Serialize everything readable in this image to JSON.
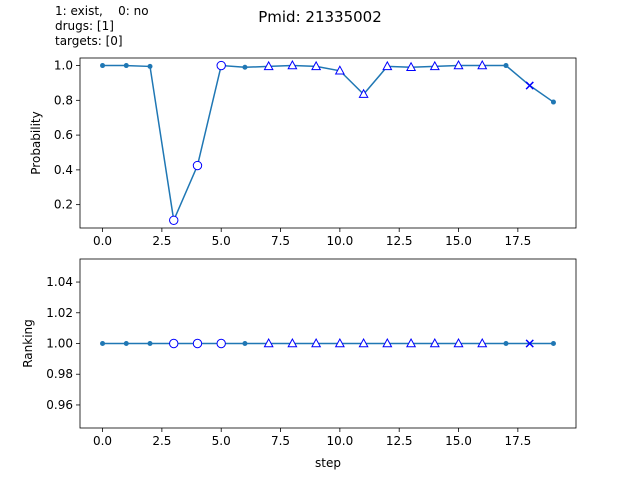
{
  "figure": {
    "suptitle": "Pmid: 21335002",
    "notes": [
      "1: exist,    0: no",
      "drugs: [1]",
      "targets: [0]"
    ]
  },
  "colors": {
    "line": "#1f77b4",
    "marker": "#0000ff"
  },
  "chart_data": [
    {
      "type": "line",
      "ylabel": "Probability",
      "xlabel": "",
      "xlim": [
        -0.95,
        19.95
      ],
      "ylim": [
        0.0657,
        1.0434
      ],
      "xticks": [
        0.0,
        2.5,
        5.0,
        7.5,
        10.0,
        12.5,
        15.0,
        17.5
      ],
      "xtick_labels": [
        "0.0",
        "2.5",
        "5.0",
        "7.5",
        "10.0",
        "12.5",
        "15.0",
        "17.5"
      ],
      "yticks": [
        0.2,
        0.4,
        0.6,
        0.8,
        1.0
      ],
      "ytick_labels": [
        "0.2",
        "0.4",
        "0.6",
        "0.8",
        "1.0"
      ],
      "x": [
        0,
        1,
        2,
        3,
        4,
        5,
        6,
        7,
        8,
        9,
        10,
        11,
        12,
        13,
        14,
        15,
        16,
        17,
        18,
        19
      ],
      "y": [
        1.0,
        1.0,
        0.995,
        0.11,
        0.425,
        1.0,
        0.99,
        0.995,
        1.0,
        0.995,
        0.97,
        0.835,
        0.995,
        0.99,
        0.995,
        1.0,
        1.0,
        1.0,
        0.885,
        0.79
      ],
      "markers": [
        "dot",
        "dot",
        "dot",
        "circle",
        "circle",
        "circle",
        "dot",
        "triangle",
        "triangle",
        "triangle",
        "triangle",
        "triangle",
        "triangle",
        "triangle",
        "triangle",
        "triangle",
        "triangle",
        "dot",
        "x",
        "dot"
      ],
      "grid": false
    },
    {
      "type": "line",
      "ylabel": "Ranking",
      "xlabel": "step",
      "xlim": [
        -0.95,
        19.95
      ],
      "ylim": [
        0.945,
        1.055
      ],
      "xticks": [
        0.0,
        2.5,
        5.0,
        7.5,
        10.0,
        12.5,
        15.0,
        17.5
      ],
      "xtick_labels": [
        "0.0",
        "2.5",
        "5.0",
        "7.5",
        "10.0",
        "12.5",
        "15.0",
        "17.5"
      ],
      "yticks": [
        0.96,
        0.98,
        1.0,
        1.02,
        1.04
      ],
      "ytick_labels": [
        "0.96",
        "0.98",
        "1.00",
        "1.02",
        "1.04"
      ],
      "x": [
        0,
        1,
        2,
        3,
        4,
        5,
        6,
        7,
        8,
        9,
        10,
        11,
        12,
        13,
        14,
        15,
        16,
        17,
        18,
        19
      ],
      "y": [
        1,
        1,
        1,
        1,
        1,
        1,
        1,
        1,
        1,
        1,
        1,
        1,
        1,
        1,
        1,
        1,
        1,
        1,
        1,
        1
      ],
      "markers": [
        "dot",
        "dot",
        "dot",
        "circle",
        "circle",
        "circle",
        "dot",
        "triangle",
        "triangle",
        "triangle",
        "triangle",
        "triangle",
        "triangle",
        "triangle",
        "triangle",
        "triangle",
        "triangle",
        "dot",
        "x",
        "dot"
      ],
      "grid": false
    }
  ]
}
